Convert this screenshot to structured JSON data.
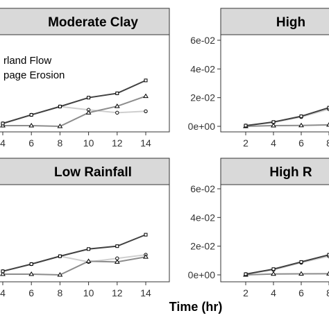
{
  "chart_data": {
    "type": "line",
    "xlabel": "Time (hr)",
    "ylabel": "",
    "grid": false,
    "legend": {
      "placement": "top-left of first panel",
      "entries": [
        "Overland Flow",
        "Seepage Erosion"
      ],
      "visible_text": [
        "rland Flow",
        "page Erosion"
      ]
    },
    "panels": [
      {
        "strip_label": "Moderate Clay",
        "x_tick_labels": [
          "4",
          "6",
          "8",
          "10",
          "12",
          "14"
        ],
        "y_tick_labels": [],
        "series": [
          {
            "name": "Overland Flow",
            "x": [
              4,
              6,
              8,
              10,
              12,
              14
            ],
            "y": [
              0.002,
              0.008,
              0.0138,
              0.02,
              0.023,
              0.032
            ]
          },
          {
            "name": "Seepage Erosion",
            "x": [
              4,
              6,
              8,
              10,
              12,
              14
            ],
            "y": [
              0.002,
              0.008,
              0.0138,
              0.0115,
              0.0095,
              0.0105
            ]
          },
          {
            "x": [
              4,
              6,
              8,
              10,
              12,
              14
            ],
            "y": [
              0.0005,
              0.0005,
              0.0,
              0.0095,
              0.014,
              0.021
            ]
          }
        ]
      },
      {
        "strip_label": "High",
        "x_tick_labels": [
          "2",
          "4",
          "6",
          "8"
        ],
        "y_tick_labels": [
          "0e+00",
          "2e-02",
          "4e-02",
          "6e-02"
        ],
        "ylim": [
          0,
          0.06
        ],
        "series": [
          {
            "x": [
              2,
              4,
              6,
              8
            ],
            "y": [
              0.0005,
              0.003,
              0.007,
              0.013
            ]
          },
          {
            "x": [
              2,
              4,
              6,
              8
            ],
            "y": [
              0.0005,
              0.0028,
              0.0065,
              0.012
            ]
          },
          {
            "x": [
              2,
              4,
              6,
              8
            ],
            "y": [
              0.0,
              0.0005,
              0.0006,
              0.001
            ]
          }
        ]
      },
      {
        "strip_label": "Low Rainfall",
        "x_tick_labels": [
          "4",
          "6",
          "8",
          "10",
          "12",
          "14"
        ],
        "y_tick_labels": [],
        "series": [
          {
            "x": [
              4,
              6,
              8,
              10,
              12,
              14
            ],
            "y": [
              0.0025,
              0.0075,
              0.013,
              0.018,
              0.02,
              0.028
            ]
          },
          {
            "x": [
              4,
              6,
              8,
              10,
              12,
              14
            ],
            "y": [
              0.0025,
              0.0075,
              0.013,
              0.009,
              0.0115,
              0.014
            ]
          },
          {
            "x": [
              4,
              6,
              8,
              10,
              12,
              14
            ],
            "y": [
              0.0005,
              0.0005,
              0.0,
              0.0095,
              0.009,
              0.0125
            ]
          }
        ]
      },
      {
        "strip_label": "High R",
        "x_tick_labels": [
          "2",
          "4",
          "6",
          "8"
        ],
        "y_tick_labels": [
          "0e+00",
          "2e-02",
          "4e-02",
          "6e-02"
        ],
        "ylim": [
          0,
          0.06
        ],
        "series": [
          {
            "x": [
              2,
              4,
              6,
              8
            ],
            "y": [
              0.0005,
              0.004,
              0.009,
              0.014
            ]
          },
          {
            "x": [
              2,
              4,
              6,
              8
            ],
            "y": [
              0.0005,
              0.0035,
              0.0085,
              0.013
            ]
          },
          {
            "x": [
              2,
              4,
              6,
              8
            ],
            "y": [
              0.0,
              0.0006,
              0.0007,
              0.0008
            ]
          }
        ]
      }
    ],
    "colors": {
      "strip_bg": "#d9d9d9",
      "series": [
        "#404040",
        "#cfcfcf",
        "#8c8c8c"
      ]
    }
  }
}
